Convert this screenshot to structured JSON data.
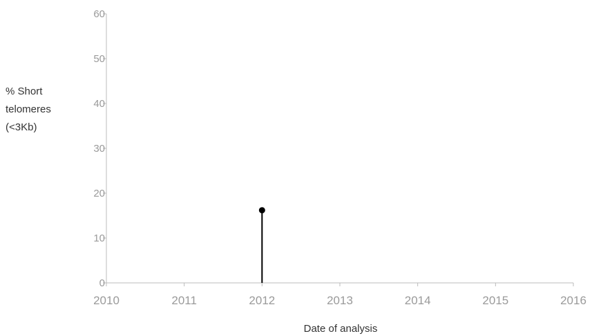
{
  "chart_data": {
    "type": "scatter",
    "ylabel_lines": [
      "% Short",
      "telomeres",
      "(<3Kb)"
    ],
    "xlabel": "Date of analysis",
    "x_ticks": [
      "2010",
      "2011",
      "2012",
      "2013",
      "2014",
      "2015",
      "2016"
    ],
    "y_ticks": [
      "0",
      "10",
      "20",
      "30",
      "40",
      "50",
      "60"
    ],
    "xlim": [
      2010,
      2016
    ],
    "ylim": [
      0,
      60
    ],
    "grid": false,
    "series": [
      {
        "points": [
          {
            "x": 2012,
            "y": 16.2
          }
        ],
        "style": "stem",
        "color": "#000000"
      }
    ],
    "colors": {
      "axis": "#bbbbbb",
      "tick_text": "#9a9a9a",
      "label_text": "#333333",
      "marker": "#000000"
    }
  }
}
